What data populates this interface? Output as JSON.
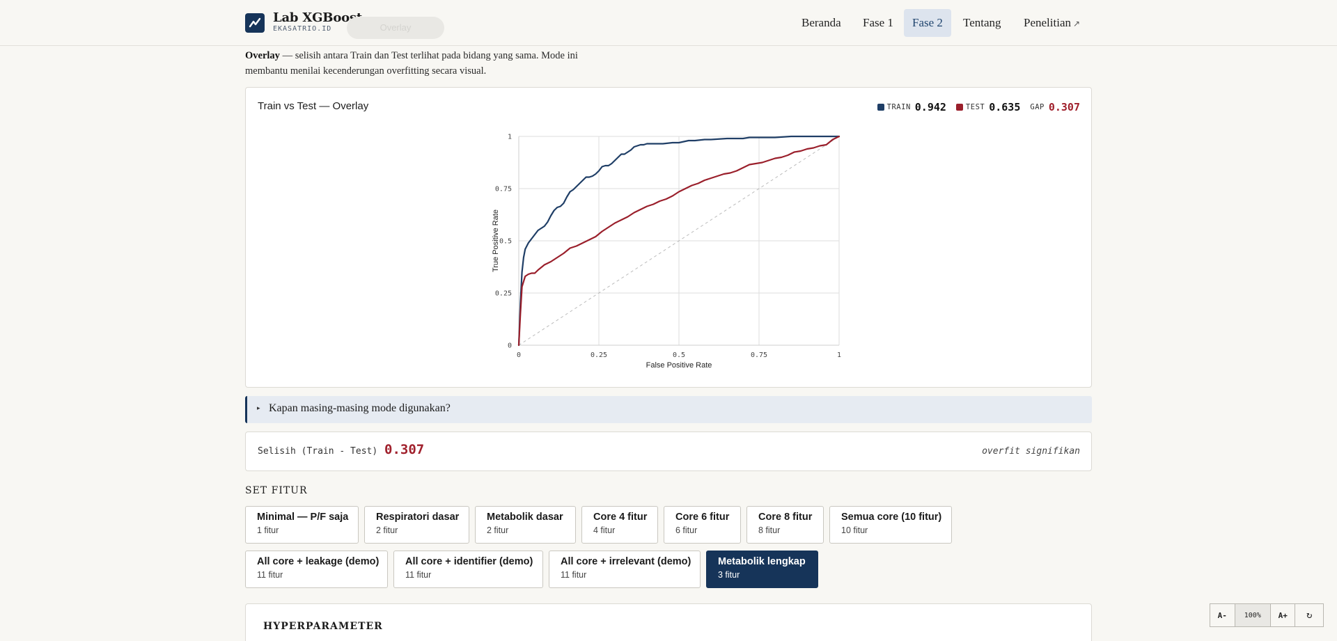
{
  "header": {
    "brand_name": "Lab XGBoost",
    "brand_sub": "EKASATRIO.ID",
    "ghost_pill": "Overlay",
    "nav": [
      {
        "label": "Beranda",
        "active": false
      },
      {
        "label": "Fase 1",
        "active": false
      },
      {
        "label": "Fase 2",
        "active": true
      },
      {
        "label": "Tentang",
        "active": false
      },
      {
        "label": "Penelitian",
        "active": false,
        "external_icon": "↗"
      }
    ]
  },
  "intro": {
    "bold": "Overlay",
    "text": " — selisih antara Train dan Test terlihat pada bidang yang sama. Mode ini membantu menilai kecenderungan overfitting secara visual."
  },
  "chart_card": {
    "title": "Train vs Test — Overlay",
    "legend": {
      "train_key": "TRAIN",
      "train_value": "0.942",
      "test_key": "TEST",
      "test_value": "0.635",
      "gap_key": "GAP",
      "gap_value": "0.307"
    }
  },
  "chart_data": {
    "type": "line",
    "xlabel": "False Positive Rate",
    "ylabel": "True Positive Rate",
    "xlim": [
      0,
      1
    ],
    "ylim": [
      0,
      1
    ],
    "xticks": [
      "0",
      "0.25",
      "0.5",
      "0.75",
      "1"
    ],
    "yticks": [
      "0",
      "0.25",
      "0.5",
      "0.75",
      "1"
    ],
    "grid": true,
    "diagonal_reference": true,
    "colors": {
      "train": "#1f3e66",
      "test": "#9a1f2b",
      "diagonal": "#bbbbbb"
    },
    "series": [
      {
        "key": "train",
        "x": [
          0,
          0.005,
          0.01,
          0.015,
          0.02,
          0.03,
          0.04,
          0.05,
          0.06,
          0.07,
          0.08,
          0.09,
          0.1,
          0.11,
          0.12,
          0.13,
          0.14,
          0.15,
          0.16,
          0.17,
          0.18,
          0.19,
          0.2,
          0.21,
          0.22,
          0.23,
          0.24,
          0.25,
          0.26,
          0.27,
          0.28,
          0.29,
          0.3,
          0.31,
          0.32,
          0.33,
          0.34,
          0.35,
          0.36,
          0.37,
          0.38,
          0.39,
          0.4,
          0.42,
          0.45,
          0.48,
          0.5,
          0.53,
          0.55,
          0.58,
          0.6,
          0.65,
          0.7,
          0.72,
          0.75,
          0.8,
          0.85,
          0.9,
          0.95,
          1
        ],
        "y": [
          0,
          0.2,
          0.35,
          0.42,
          0.46,
          0.49,
          0.51,
          0.53,
          0.55,
          0.56,
          0.57,
          0.59,
          0.62,
          0.645,
          0.66,
          0.665,
          0.68,
          0.71,
          0.735,
          0.745,
          0.76,
          0.775,
          0.79,
          0.805,
          0.805,
          0.81,
          0.82,
          0.835,
          0.855,
          0.86,
          0.86,
          0.87,
          0.885,
          0.9,
          0.915,
          0.915,
          0.925,
          0.935,
          0.95,
          0.955,
          0.96,
          0.96,
          0.965,
          0.965,
          0.965,
          0.97,
          0.97,
          0.98,
          0.98,
          0.985,
          0.985,
          0.99,
          0.99,
          0.995,
          0.995,
          0.995,
          1.0,
          1.0,
          1.0,
          1.0
        ]
      },
      {
        "key": "test",
        "x": [
          0,
          0.005,
          0.01,
          0.02,
          0.03,
          0.04,
          0.05,
          0.06,
          0.08,
          0.1,
          0.12,
          0.14,
          0.16,
          0.18,
          0.2,
          0.22,
          0.24,
          0.26,
          0.28,
          0.3,
          0.32,
          0.34,
          0.36,
          0.38,
          0.4,
          0.42,
          0.44,
          0.46,
          0.48,
          0.5,
          0.52,
          0.54,
          0.56,
          0.58,
          0.6,
          0.62,
          0.64,
          0.66,
          0.68,
          0.7,
          0.72,
          0.74,
          0.76,
          0.78,
          0.8,
          0.82,
          0.84,
          0.86,
          0.88,
          0.9,
          0.92,
          0.94,
          0.96,
          0.98,
          1
        ],
        "y": [
          0,
          0.15,
          0.28,
          0.33,
          0.34,
          0.345,
          0.345,
          0.36,
          0.385,
          0.4,
          0.42,
          0.44,
          0.465,
          0.475,
          0.49,
          0.505,
          0.52,
          0.545,
          0.565,
          0.585,
          0.6,
          0.615,
          0.635,
          0.65,
          0.665,
          0.675,
          0.69,
          0.7,
          0.715,
          0.735,
          0.75,
          0.765,
          0.775,
          0.79,
          0.8,
          0.81,
          0.82,
          0.825,
          0.835,
          0.85,
          0.865,
          0.87,
          0.875,
          0.885,
          0.895,
          0.9,
          0.91,
          0.925,
          0.93,
          0.94,
          0.945,
          0.955,
          0.96,
          0.985,
          1.0
        ]
      }
    ]
  },
  "details": {
    "caret": "▸",
    "label": "Kapan masing-masing mode digunakan?"
  },
  "diff": {
    "label": "Selisih (Train - Test)",
    "value": "0.307",
    "note": "overfit signifikan"
  },
  "feature_set": {
    "title": "SET FITUR",
    "options": [
      {
        "name": "Minimal — P/F saja",
        "count": "1 fitur",
        "selected": false
      },
      {
        "name": "Respiratori dasar",
        "count": "2 fitur",
        "selected": false
      },
      {
        "name": "Metabolik dasar",
        "count": "2 fitur",
        "selected": false
      },
      {
        "name": "Core 4 fitur",
        "count": "4 fitur",
        "selected": false
      },
      {
        "name": "Core 6 fitur",
        "count": "6 fitur",
        "selected": false
      },
      {
        "name": "Core 8 fitur",
        "count": "8 fitur",
        "selected": false
      },
      {
        "name": "Semua core (10 fitur)",
        "count": "10 fitur",
        "selected": false
      },
      {
        "name": "All core + leakage (demo)",
        "count": "11 fitur",
        "selected": false
      },
      {
        "name": "All core + identifier (demo)",
        "count": "11 fitur",
        "selected": false
      },
      {
        "name": "All core + irrelevant (demo)",
        "count": "11 fitur",
        "selected": false
      },
      {
        "name": "Metabolik lengkap",
        "count": "3 fitur",
        "selected": true
      }
    ]
  },
  "hyperparameter": {
    "title": "HYPERPARAMETER"
  },
  "zoom": {
    "decrease": "A-",
    "level": "100%",
    "increase": "A+",
    "reset_icon": "↻"
  }
}
